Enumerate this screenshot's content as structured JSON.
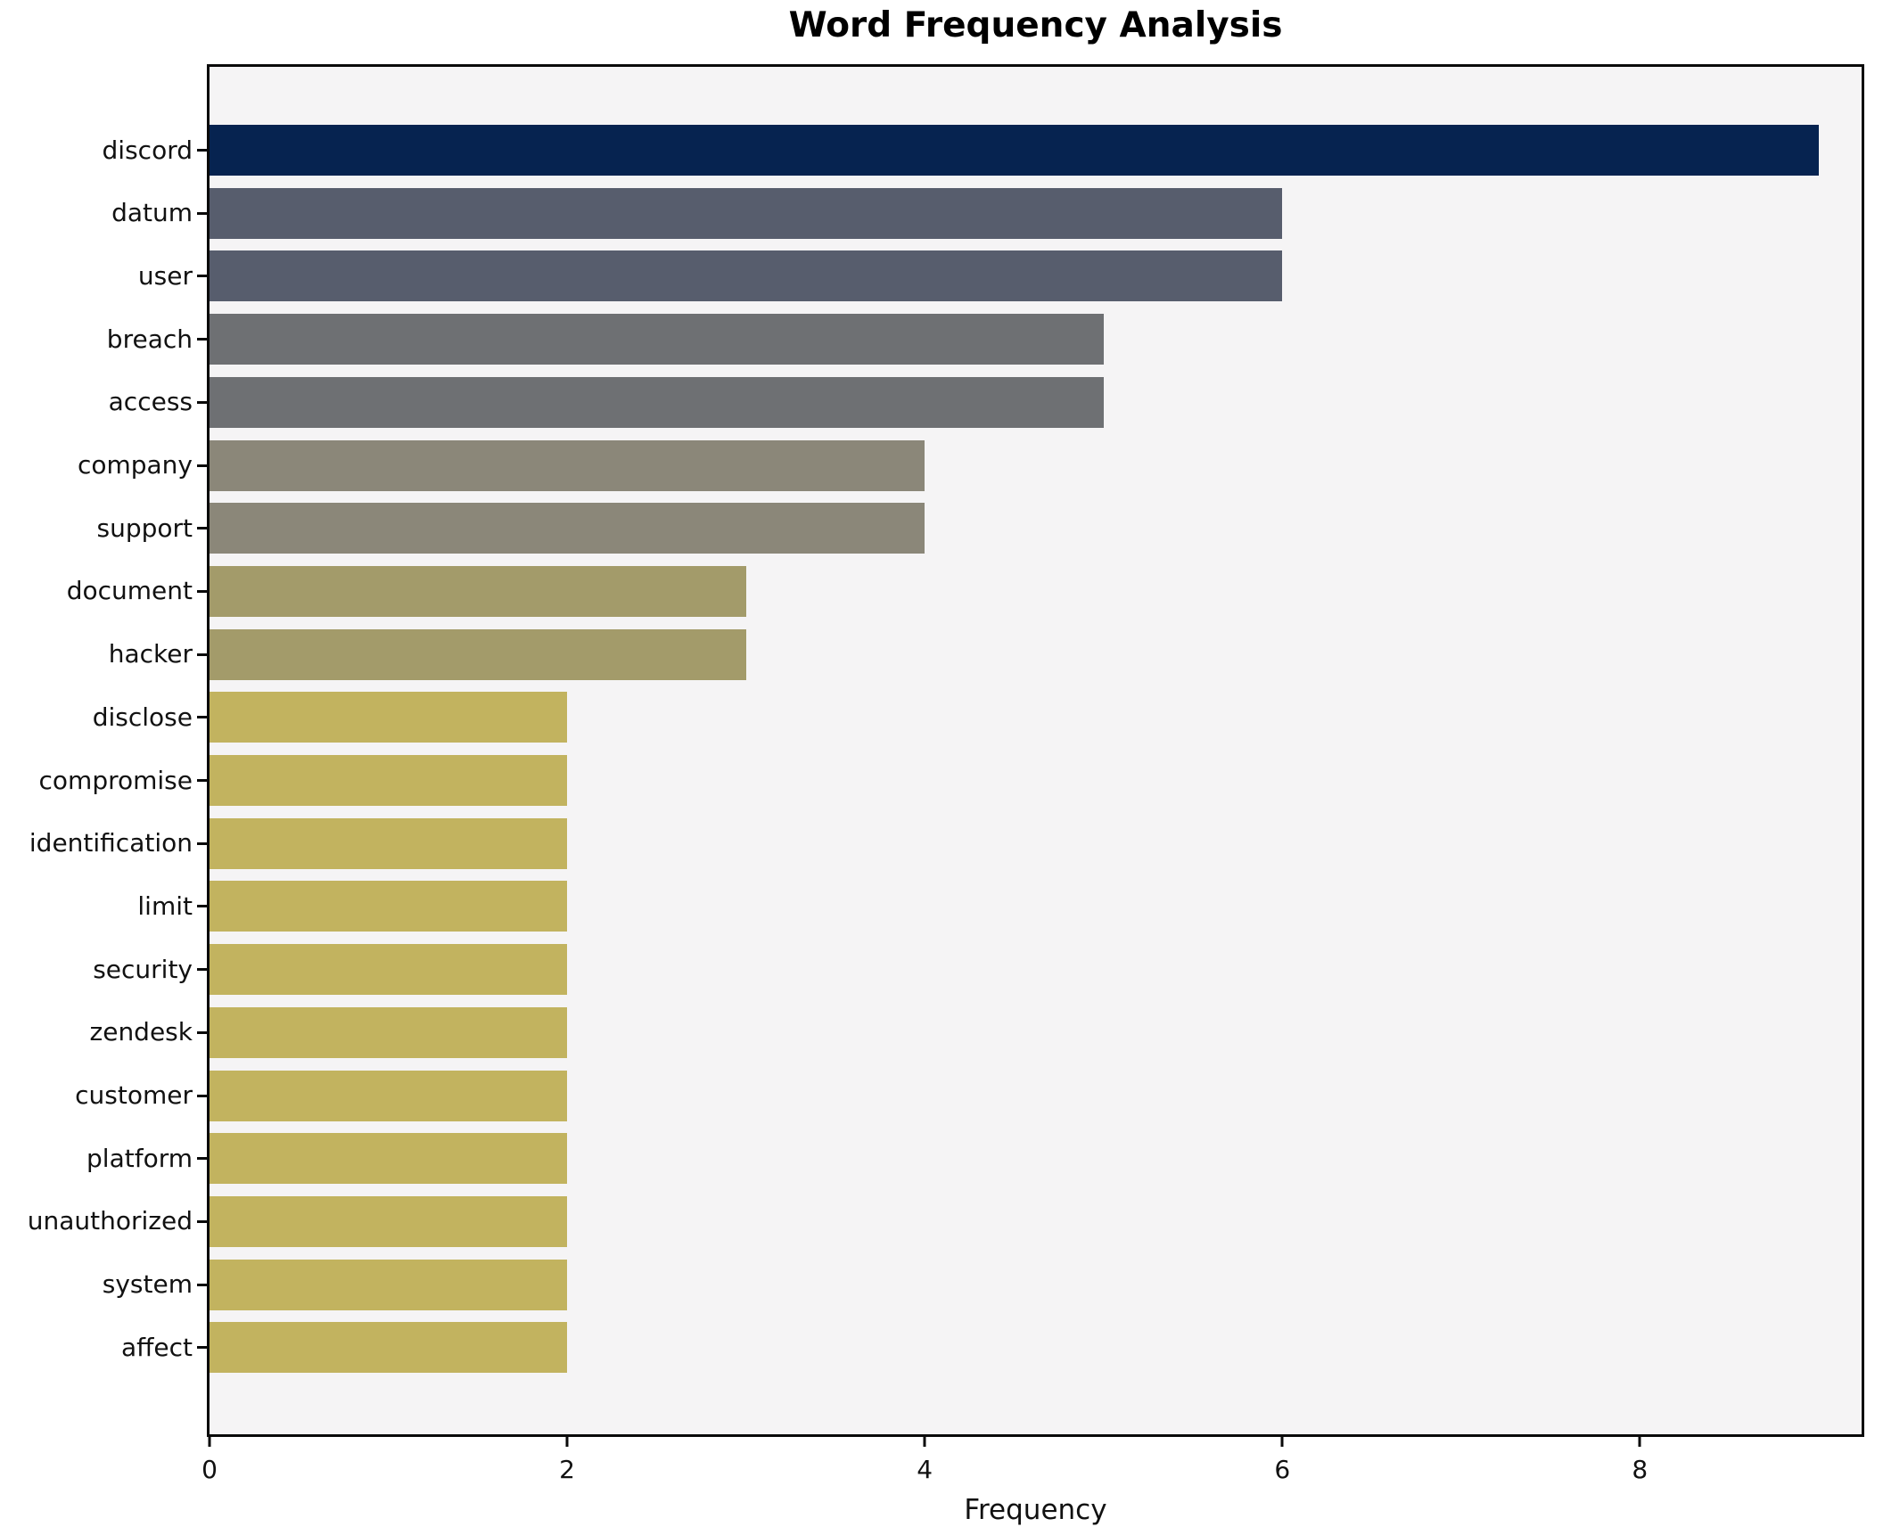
{
  "chart_data": {
    "type": "bar",
    "orientation": "horizontal",
    "title": "Word Frequency Analysis",
    "xlabel": "Frequency",
    "ylabel": "",
    "categories": [
      "discord",
      "datum",
      "user",
      "breach",
      "access",
      "company",
      "support",
      "document",
      "hacker",
      "disclose",
      "compromise",
      "identification",
      "limit",
      "security",
      "zendesk",
      "customer",
      "platform",
      "unauthorized",
      "system",
      "affect"
    ],
    "values": [
      9,
      6,
      6,
      5,
      5,
      4,
      4,
      3,
      3,
      2,
      2,
      2,
      2,
      2,
      2,
      2,
      2,
      2,
      2,
      2
    ],
    "bar_colors": [
      "#062350",
      "#575d6d",
      "#575d6d",
      "#6e7073",
      "#6e7073",
      "#8b8779",
      "#8b8779",
      "#a39b6a",
      "#a39b6a",
      "#c2b35f",
      "#c2b35f",
      "#c2b35f",
      "#c2b35f",
      "#c2b35f",
      "#c2b35f",
      "#c2b35f",
      "#c2b35f",
      "#c2b35f",
      "#c2b35f",
      "#c2b35f"
    ],
    "xticks": [
      0,
      2,
      4,
      6,
      8
    ],
    "xlim": [
      0,
      9.24
    ],
    "grid": false,
    "legend": null,
    "plot_background": "#f5f4f5",
    "figure_background": "#ffffff",
    "border_color": "#0a0a0a"
  }
}
